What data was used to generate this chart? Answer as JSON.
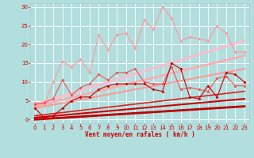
{
  "xlabel": "Vent moyen/en rafales ( km/h )",
  "background_color": "#b2dede",
  "grid_color": "#aacccc",
  "xlim": [
    -0.5,
    23.5
  ],
  "ylim": [
    -1,
    31
  ],
  "yticks": [
    0,
    5,
    10,
    15,
    20,
    25,
    30
  ],
  "xticks": [
    0,
    1,
    2,
    3,
    4,
    5,
    6,
    7,
    8,
    9,
    10,
    11,
    12,
    13,
    14,
    15,
    16,
    17,
    18,
    19,
    20,
    21,
    22,
    23
  ],
  "series": [
    {
      "x": [
        0,
        1,
        2,
        3,
        4,
        5,
        6,
        7,
        8,
        9,
        10,
        11,
        12,
        13,
        14,
        15,
        16,
        17,
        18,
        19,
        20,
        21,
        22,
        23
      ],
      "y": [
        4.5,
        4.0,
        10.0,
        15.5,
        14.0,
        16.0,
        12.5,
        22.5,
        18.5,
        22.5,
        23.0,
        19.0,
        26.5,
        24.0,
        30.0,
        27.0,
        21.0,
        22.0,
        21.5,
        21.0,
        25.0,
        23.0,
        18.0,
        18.0
      ],
      "color": "#ff9999",
      "linewidth": 0.8,
      "marker": "D",
      "markersize": 2.0,
      "zorder": 4
    },
    {
      "x": [
        0,
        1,
        2,
        3,
        4,
        5,
        6,
        7,
        8,
        9,
        10,
        11,
        12,
        13,
        14,
        15,
        16,
        17,
        18,
        19,
        20,
        21,
        22,
        23
      ],
      "y": [
        4.0,
        4.5,
        5.5,
        10.5,
        6.5,
        8.5,
        9.5,
        12.0,
        10.5,
        12.5,
        12.5,
        13.5,
        10.0,
        9.5,
        9.5,
        14.0,
        8.0,
        8.5,
        8.0,
        7.5,
        11.0,
        11.5,
        9.0,
        9.0
      ],
      "color": "#ee5555",
      "linewidth": 0.8,
      "marker": "D",
      "markersize": 2.0,
      "zorder": 5
    },
    {
      "x": [
        0,
        1,
        2,
        3,
        4,
        5,
        6,
        7,
        8,
        9,
        10,
        11,
        12,
        13,
        14,
        15,
        16,
        17,
        18,
        19,
        20,
        21,
        22,
        23
      ],
      "y": [
        3.0,
        0.5,
        1.0,
        3.0,
        5.0,
        6.0,
        6.0,
        8.0,
        9.0,
        9.5,
        9.5,
        9.5,
        9.5,
        8.0,
        7.5,
        15.0,
        13.5,
        6.0,
        5.5,
        9.0,
        6.0,
        12.5,
        12.0,
        10.0
      ],
      "color": "#cc0000",
      "linewidth": 0.8,
      "marker": "D",
      "markersize": 2.0,
      "zorder": 6
    },
    {
      "x": [
        0,
        23
      ],
      "y": [
        4.0,
        21.0
      ],
      "color": "#ffbbcc",
      "linewidth": 2.0,
      "marker": null,
      "zorder": 2
    },
    {
      "x": [
        0,
        23
      ],
      "y": [
        3.5,
        17.0
      ],
      "color": "#ffaaaa",
      "linewidth": 1.8,
      "marker": null,
      "zorder": 2
    },
    {
      "x": [
        0,
        23
      ],
      "y": [
        3.0,
        13.5
      ],
      "color": "#ff9999",
      "linewidth": 1.5,
      "marker": null,
      "zorder": 2
    },
    {
      "x": [
        0,
        23
      ],
      "y": [
        1.0,
        7.5
      ],
      "color": "#dd2222",
      "linewidth": 1.2,
      "marker": null,
      "zorder": 2
    },
    {
      "x": [
        0,
        23
      ],
      "y": [
        0.5,
        5.5
      ],
      "color": "#cc0000",
      "linewidth": 1.5,
      "marker": null,
      "zorder": 2
    },
    {
      "x": [
        0,
        23
      ],
      "y": [
        0.0,
        3.5
      ],
      "color": "#bb0000",
      "linewidth": 2.0,
      "marker": null,
      "zorder": 2
    }
  ]
}
